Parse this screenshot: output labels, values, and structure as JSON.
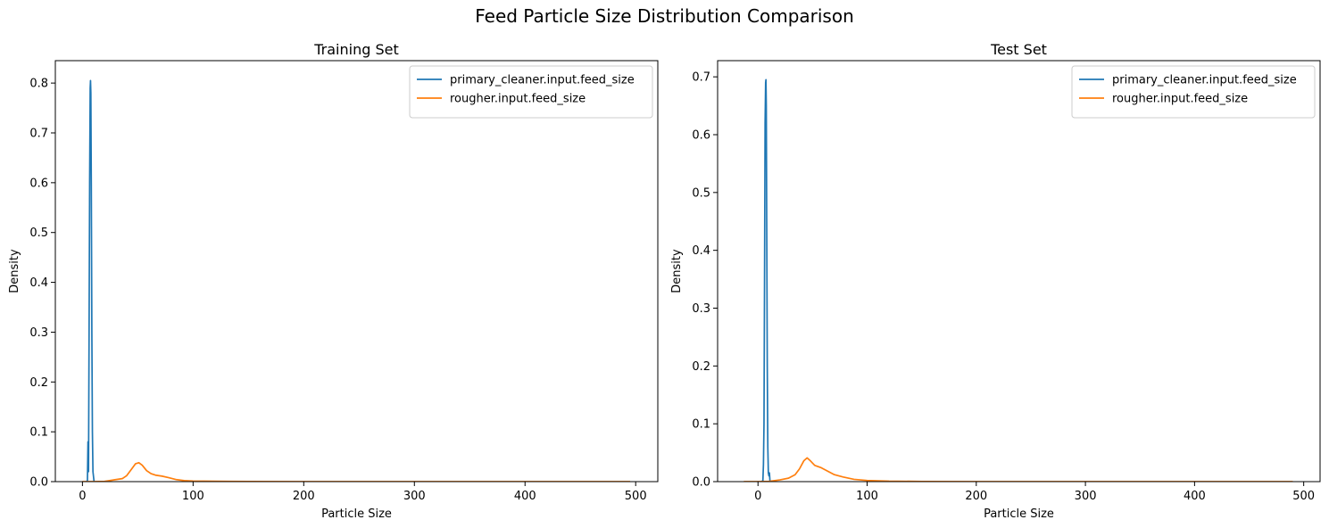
{
  "figure": {
    "title": "Feed Particle Size Distribution Comparison"
  },
  "chart_data": [
    {
      "type": "line",
      "title": "Training Set",
      "xlabel": "Particle Size",
      "ylabel": "Density",
      "xlim": [
        -24.5,
        520
      ],
      "ylim": [
        0,
        0.845
      ],
      "xticks": [
        0,
        100,
        200,
        300,
        400,
        500
      ],
      "yticks": [
        0.0,
        0.1,
        0.2,
        0.3,
        0.4,
        0.5,
        0.6,
        0.7,
        0.8
      ],
      "ytick_labels": [
        "0.0",
        "0.1",
        "0.2",
        "0.3",
        "0.4",
        "0.5",
        "0.6",
        "0.7",
        "0.8"
      ],
      "legend_position": "top-right",
      "grid": false,
      "series": [
        {
          "name": "primary_cleaner.input.feed_size",
          "color": "#1f77b4",
          "points": [
            [
              3.5,
              0.0
            ],
            [
              4.5,
              0.002
            ],
            [
              5.0,
              0.08
            ],
            [
              5.5,
              0.02
            ],
            [
              6.0,
              0.3
            ],
            [
              6.5,
              0.6
            ],
            [
              7.0,
              0.79
            ],
            [
              7.3,
              0.805
            ],
            [
              7.6,
              0.78
            ],
            [
              8.0,
              0.6
            ],
            [
              8.5,
              0.3
            ],
            [
              9.0,
              0.1
            ],
            [
              9.5,
              0.02
            ],
            [
              10.5,
              0.0
            ]
          ]
        },
        {
          "name": "rougher.input.feed_size",
          "color": "#ff7f0e",
          "points": [
            [
              0,
              0.0
            ],
            [
              10,
              0.0
            ],
            [
              20,
              0.0005
            ],
            [
              30,
              0.004
            ],
            [
              36,
              0.006
            ],
            [
              40,
              0.012
            ],
            [
              44,
              0.024
            ],
            [
              48,
              0.036
            ],
            [
              51,
              0.038
            ],
            [
              54,
              0.033
            ],
            [
              58,
              0.022
            ],
            [
              62,
              0.016
            ],
            [
              66,
              0.013
            ],
            [
              72,
              0.011
            ],
            [
              78,
              0.008
            ],
            [
              85,
              0.004
            ],
            [
              92,
              0.002
            ],
            [
              100,
              0.0012
            ],
            [
              120,
              0.0006
            ],
            [
              150,
              0.0003
            ],
            [
              200,
              0.0001
            ],
            [
              300,
              0.0
            ],
            [
              400,
              0.0
            ],
            [
              495,
              0.0
            ]
          ]
        }
      ]
    },
    {
      "type": "line",
      "title": "Test Set",
      "xlabel": "Particle Size",
      "ylabel": "Density",
      "xlim": [
        -37,
        515
      ],
      "ylim": [
        0,
        0.728
      ],
      "xticks": [
        0,
        100,
        200,
        300,
        400,
        500
      ],
      "yticks": [
        0.0,
        0.1,
        0.2,
        0.3,
        0.4,
        0.5,
        0.6,
        0.7
      ],
      "ytick_labels": [
        "0.0",
        "0.1",
        "0.2",
        "0.3",
        "0.4",
        "0.5",
        "0.6",
        "0.7"
      ],
      "legend_position": "top-right",
      "grid": false,
      "series": [
        {
          "name": "primary_cleaner.input.feed_size",
          "color": "#1f77b4",
          "points": [
            [
              3.5,
              0.0
            ],
            [
              4.5,
              0.002
            ],
            [
              5.0,
              0.03
            ],
            [
              5.5,
              0.1
            ],
            [
              6.0,
              0.35
            ],
            [
              6.5,
              0.62
            ],
            [
              7.0,
              0.69
            ],
            [
              7.3,
              0.695
            ],
            [
              7.6,
              0.65
            ],
            [
              8.0,
              0.45
            ],
            [
              8.5,
              0.2
            ],
            [
              9.0,
              0.06
            ],
            [
              9.5,
              0.015
            ],
            [
              10.0,
              0.01
            ],
            [
              10.5,
              0.015
            ],
            [
              11.0,
              0.0
            ]
          ]
        },
        {
          "name": "rougher.input.feed_size",
          "color": "#ff7f0e",
          "points": [
            [
              -13,
              0.0
            ],
            [
              0,
              0.0
            ],
            [
              10,
              0.0005
            ],
            [
              20,
              0.003
            ],
            [
              28,
              0.006
            ],
            [
              34,
              0.012
            ],
            [
              38,
              0.022
            ],
            [
              42,
              0.036
            ],
            [
              45,
              0.041
            ],
            [
              48,
              0.036
            ],
            [
              52,
              0.028
            ],
            [
              58,
              0.024
            ],
            [
              64,
              0.018
            ],
            [
              70,
              0.012
            ],
            [
              78,
              0.008
            ],
            [
              88,
              0.004
            ],
            [
              100,
              0.002
            ],
            [
              120,
              0.0008
            ],
            [
              150,
              0.0003
            ],
            [
              200,
              0.0001
            ],
            [
              300,
              0.0
            ],
            [
              400,
              0.0
            ],
            [
              490,
              0.0
            ]
          ]
        }
      ]
    }
  ]
}
